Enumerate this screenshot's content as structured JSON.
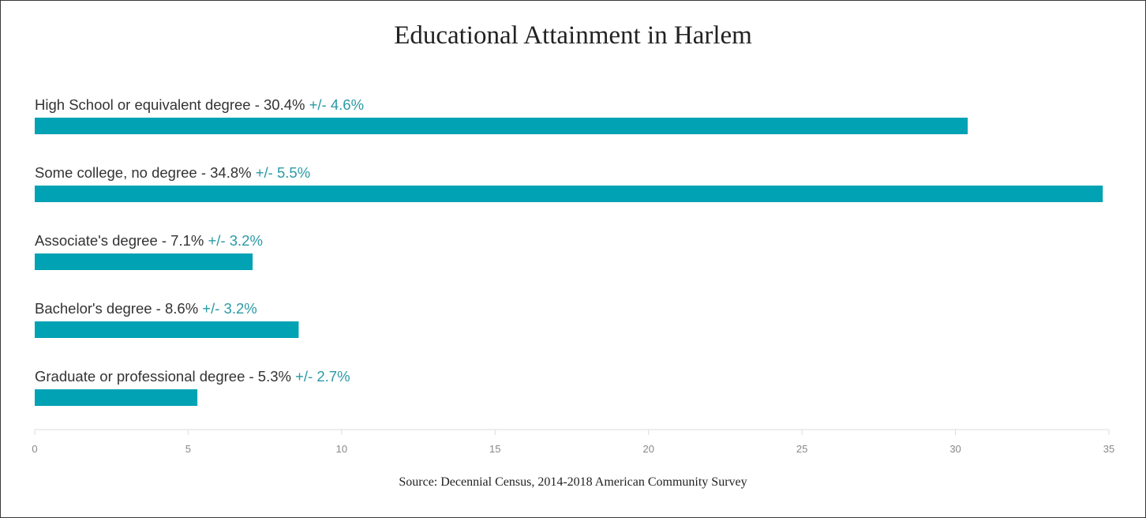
{
  "chart_data": {
    "type": "bar",
    "orientation": "horizontal",
    "title": "Educational Attainment in Harlem",
    "categories": [
      "High School or equivalent degree",
      "Some college, no degree",
      "Associate's degree",
      "Bachelor's degree",
      "Graduate or professional degree"
    ],
    "labels": [
      "High School or equivalent degree - 30.4%",
      "Some college, no degree - 34.8%",
      "Associate's degree - 7.1%",
      "Bachelor's degree - 8.6%",
      "Graduate or professional degree - 5.3%"
    ],
    "moe_labels": [
      "+/- 4.6%",
      "+/- 5.5%",
      "+/- 3.2%",
      "+/- 3.2%",
      "+/- 2.7%"
    ],
    "values": [
      30.4,
      34.8,
      7.1,
      8.6,
      5.3
    ],
    "margin_of_error": [
      4.6,
      5.5,
      3.2,
      3.2,
      2.7
    ],
    "xlim": [
      0,
      35
    ],
    "x_ticks": [
      0,
      5,
      10,
      15,
      20,
      25,
      30,
      35
    ],
    "grid": false,
    "source": "Source:  Decennial Census, 2014-2018 American Community Survey"
  },
  "colors": {
    "bar": "#00a2b4",
    "moe_text": "#2a9aa6",
    "axis": "#dddddd"
  }
}
